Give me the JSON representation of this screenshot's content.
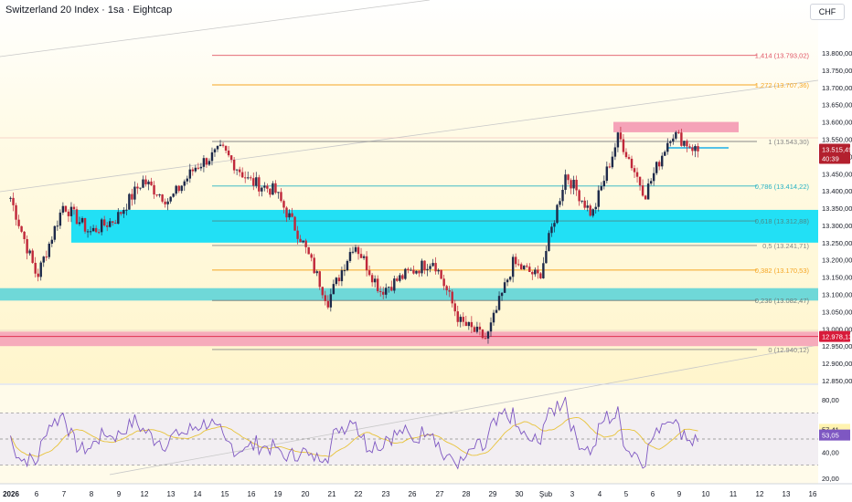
{
  "header": {
    "title": "Switzerland 20 Index · 1sa · Eightcap",
    "currency": "CHF"
  },
  "price_axis": {
    "ticks": [
      "13.800,00",
      "13.750,00",
      "13.700,00",
      "13.650,00",
      "13.600,00",
      "13.550,00",
      "13.500,00",
      "13.450,00",
      "13.400,00",
      "13.350,00",
      "13.300,00",
      "13.250,00",
      "13.200,00",
      "13.150,00",
      "13.100,00",
      "13.050,00",
      "13.000,00",
      "12.950,00",
      "12.900,00",
      "12.850,00"
    ],
    "tick_values": [
      13800,
      13750,
      13700,
      13650,
      13600,
      13550,
      13500,
      13450,
      13400,
      13350,
      13300,
      13250,
      13200,
      13150,
      13100,
      13050,
      13000,
      12950,
      12900,
      12850
    ],
    "range": [
      12830,
      13830
    ],
    "current_price": "13.515,49",
    "current_price_value": 13515.49,
    "countdown": "40:39",
    "red_zone_label": "12.978,13",
    "red_zone_value": 12978.13
  },
  "fib_levels": [
    {
      "label": "1,414 (13.793,02)",
      "value": 13793.02,
      "color": "#e05565"
    },
    {
      "label": "1,272 (13.707,36)",
      "value": 13707.36,
      "color": "#f5a623"
    },
    {
      "label": "1 (13.543,30)",
      "value": 13543.3,
      "color": "#888888"
    },
    {
      "label": "0,786 (13.414,22)",
      "value": 13414.22,
      "color": "#26b2c4"
    },
    {
      "label": "0,618 (13.312,88)",
      "value": 13312.88,
      "color": "#4a8a8a"
    },
    {
      "label": "0,5 (13.241,71)",
      "value": 13241.71,
      "color": "#888888"
    },
    {
      "label": "0,382 (13.170,53)",
      "value": 13170.53,
      "color": "#f5a623"
    },
    {
      "label": "0,236 (13.082,47)",
      "value": 13082.47,
      "color": "#6a7a7a"
    },
    {
      "label": "0 (12.940,12)",
      "value": 12940.12,
      "color": "#888888"
    }
  ],
  "time_axis": {
    "labels": [
      "2026",
      "6",
      "7",
      "8",
      "9",
      "12",
      "13",
      "14",
      "15",
      "16",
      "19",
      "20",
      "21",
      "22",
      "23",
      "26",
      "27",
      "28",
      "29",
      "30",
      "Şub",
      "3",
      "4",
      "5",
      "6",
      "9",
      "10",
      "11",
      "12",
      "13",
      "16"
    ]
  },
  "rsi": {
    "ticks": [
      "80,00",
      "60,00",
      "40,00",
      "20,00"
    ],
    "tick_values": [
      80,
      60,
      40,
      20
    ],
    "value_label": "57,41",
    "ma_label": "53,05",
    "value": 57.41,
    "ma_value": 53.05
  },
  "colors": {
    "bull": "#26a69a",
    "bear": "#ef5350",
    "candle": "#1e2a4a",
    "rsi_line": "#7e57c2",
    "rsi_ma": "#f5d76e",
    "cyan_zone": "#22e0f5",
    "teal_zone": "#6fd8d8",
    "pink_zone": "#f5a3b8"
  },
  "chart_data": {
    "type": "candlestick",
    "title": "Switzerland 20 Index · 1sa · Eightcap",
    "x_start": "2026-01-05",
    "x_end": "2026-02-10",
    "ylim": [
      12830,
      13830
    ],
    "anchors": [
      {
        "d": "2026-01-05",
        "v": 13380
      },
      {
        "d": "2026-01-06",
        "v": 13150
      },
      {
        "d": "2026-01-07",
        "v": 13360
      },
      {
        "d": "2026-01-08",
        "v": 13280
      },
      {
        "d": "2026-01-09",
        "v": 13320
      },
      {
        "d": "2026-01-12",
        "v": 13430
      },
      {
        "d": "2026-01-13",
        "v": 13370
      },
      {
        "d": "2026-01-14",
        "v": 13470
      },
      {
        "d": "2026-01-15",
        "v": 13520
      },
      {
        "d": "2026-01-16",
        "v": 13430
      },
      {
        "d": "2026-01-19",
        "v": 13400
      },
      {
        "d": "2026-01-20",
        "v": 13260
      },
      {
        "d": "2026-01-21",
        "v": 13080
      },
      {
        "d": "2026-01-22",
        "v": 13250
      },
      {
        "d": "2026-01-23",
        "v": 13110
      },
      {
        "d": "2026-01-26",
        "v": 13160
      },
      {
        "d": "2026-01-27",
        "v": 13200
      },
      {
        "d": "2026-01-28",
        "v": 13020
      },
      {
        "d": "2026-01-29",
        "v": 12970
      },
      {
        "d": "2026-01-30",
        "v": 13190
      },
      {
        "d": "2026-02-02",
        "v": 13150
      },
      {
        "d": "2026-02-03",
        "v": 13450
      },
      {
        "d": "2026-02-04",
        "v": 13330
      },
      {
        "d": "2026-02-05",
        "v": 13560
      },
      {
        "d": "2026-02-06",
        "v": 13390
      },
      {
        "d": "2026-02-09",
        "v": 13570
      },
      {
        "d": "2026-02-10",
        "v": 13515
      }
    ],
    "zones": [
      {
        "name": "resistance",
        "from": 13570,
        "to": 13600,
        "color": "#f5a3b8"
      },
      {
        "name": "cyan-demand",
        "from": 13250,
        "to": 13345,
        "color": "#22e0f5"
      },
      {
        "name": "teal-demand",
        "from": 13082,
        "to": 13118,
        "color": "#6fd8d8"
      },
      {
        "name": "red-support",
        "from": 12950,
        "to": 12990,
        "color": "#f5a3b8"
      }
    ]
  }
}
